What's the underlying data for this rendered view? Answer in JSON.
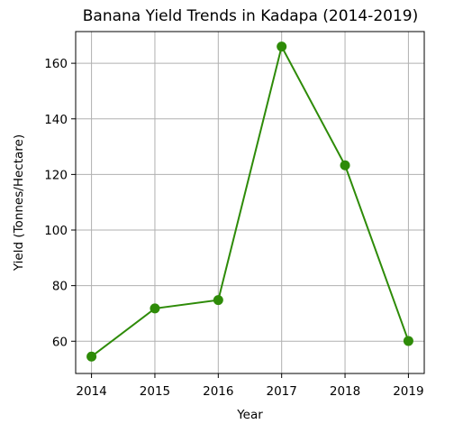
{
  "chart_data": {
    "type": "line",
    "title": "Banana Yield Trends in Kadapa (2014-2019)",
    "xlabel": "Year",
    "ylabel": "Yield (Tonnes/Hectare)",
    "x": [
      2014,
      2015,
      2016,
      2017,
      2018,
      2019
    ],
    "x_tick_labels": [
      "2014",
      "2015",
      "2016",
      "2017",
      "2018",
      "2019"
    ],
    "y_ticks": [
      60,
      80,
      100,
      120,
      140,
      160
    ],
    "y_tick_labels": [
      "60",
      "80",
      "100",
      "120",
      "140",
      "160"
    ],
    "xlim": [
      2013.75,
      2019.25
    ],
    "ylim": [
      48.4,
      171.4
    ],
    "grid": true,
    "series": [
      {
        "values": [
          54.5,
          71.8,
          74.8,
          166.0,
          123.3,
          60.1
        ],
        "color": "#2e8b08",
        "marker": "circle"
      }
    ]
  }
}
